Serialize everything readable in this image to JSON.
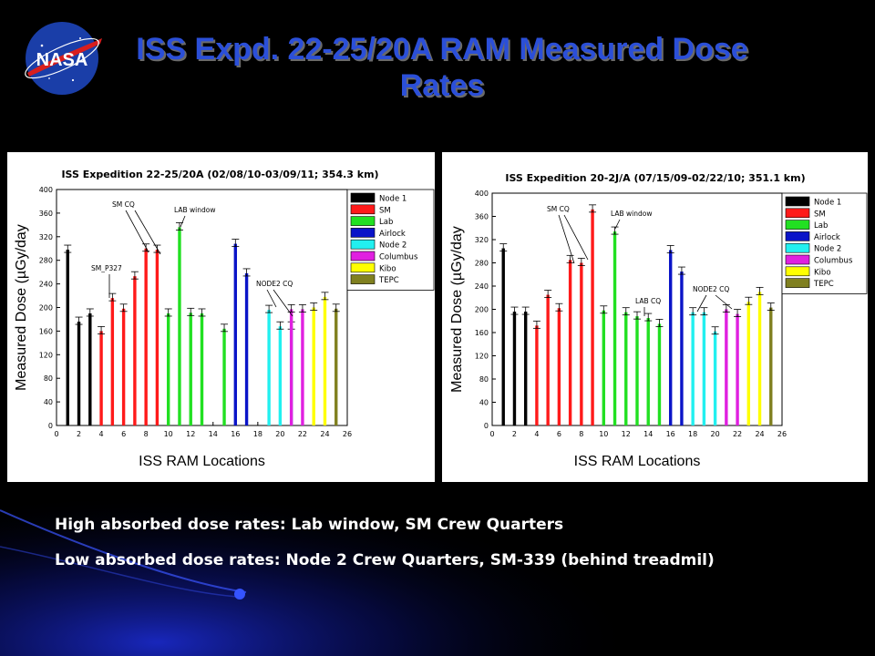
{
  "slide": {
    "title": "ISS Expd. 22-25/20A RAM Measured Dose Rates",
    "logo_text": "NASA",
    "notes": [
      "High absorbed dose rates: Lab window, SM Crew Quarters",
      "Low absorbed dose rates: Node 2 Crew Quarters,  SM-339 (behind treadmil)"
    ]
  },
  "colors": {
    "background": "#000000",
    "title": "#2b4fd8",
    "Node 1": "#000000",
    "SM": "#ff1a1a",
    "Lab": "#22e022",
    "Airlock": "#0a14c8",
    "Node 2": "#22f0f0",
    "Columbus": "#e020e0",
    "Kibo": "#ffff00",
    "TEPC": "#808020"
  },
  "chart_data": [
    {
      "type": "bar",
      "title": "ISS Expedition 22-25/20A (02/08/10-03/09/11; 354.3 km)",
      "xlabel": "ISS RAM Locations",
      "ylabel": "Measured Dose (µGy/day",
      "xlim": [
        0,
        26
      ],
      "ylim": [
        0,
        400
      ],
      "xticks": [
        0,
        2,
        4,
        6,
        8,
        10,
        12,
        14,
        16,
        18,
        20,
        22,
        24,
        26
      ],
      "yticks": [
        0,
        40,
        80,
        120,
        160,
        200,
        240,
        280,
        320,
        360,
        400
      ],
      "legend_position": "top-right",
      "legend": [
        "Node 1",
        "SM",
        "Lab",
        "Airlock",
        "Node 2",
        "Columbus",
        "Kibo",
        "TEPC"
      ],
      "annotations": [
        "SM CQ",
        "SM_P327",
        "LAB window",
        "NODE2 CQ"
      ],
      "series": [
        {
          "name": "Node 1",
          "x": [
            1,
            2,
            3
          ],
          "values": [
            298,
            176,
            190
          ]
        },
        {
          "name": "SM",
          "x": [
            4,
            5,
            6,
            7,
            8,
            9
          ],
          "values": [
            160,
            216,
            198,
            253,
            300,
            298
          ]
        },
        {
          "name": "Lab",
          "x": [
            10,
            11,
            12,
            13,
            15
          ],
          "values": [
            190,
            336,
            191,
            190,
            164
          ]
        },
        {
          "name": "Airlock",
          "x": [
            16,
            17
          ],
          "values": [
            308,
            258
          ]
        },
        {
          "name": "Node 2",
          "x": [
            19,
            20,
            21
          ],
          "values": [
            196,
            168,
            168
          ]
        },
        {
          "name": "Columbus",
          "x": [
            21,
            22
          ],
          "values": [
            197,
            197
          ]
        },
        {
          "name": "Kibo",
          "x": [
            23,
            24
          ],
          "values": [
            200,
            218
          ]
        },
        {
          "name": "TEPC",
          "x": [
            25
          ],
          "values": [
            198
          ]
        }
      ]
    },
    {
      "type": "bar",
      "title": "ISS Expedition 20-2J/A (07/15/09-02/22/10; 351.1 km)",
      "xlabel": "ISS RAM Locations",
      "ylabel": "Measured Dose (µGy/day",
      "xlim": [
        0,
        26
      ],
      "ylim": [
        0,
        400
      ],
      "xticks": [
        0,
        2,
        4,
        6,
        8,
        10,
        12,
        14,
        16,
        18,
        20,
        22,
        24,
        26
      ],
      "yticks": [
        0,
        40,
        80,
        120,
        160,
        200,
        240,
        280,
        320,
        360,
        400
      ],
      "legend_position": "top-right",
      "legend": [
        "Node 1",
        "SM",
        "Lab",
        "Airlock",
        "Node 2",
        "Columbus",
        "Kibo",
        "TEPC"
      ],
      "annotations": [
        "SM CQ",
        "LAB window",
        "LAB CQ",
        "NODE2 CQ"
      ],
      "series": [
        {
          "name": "Node 1",
          "x": [
            1,
            2,
            3
          ],
          "values": [
            305,
            196,
            196
          ]
        },
        {
          "name": "SM",
          "x": [
            4,
            5,
            6,
            7,
            8,
            9
          ],
          "values": [
            172,
            225,
            202,
            285,
            280,
            372
          ]
        },
        {
          "name": "Lab",
          "x": [
            10,
            11,
            12,
            13,
            14,
            15
          ],
          "values": [
            198,
            334,
            195,
            188,
            185,
            175
          ]
        },
        {
          "name": "Airlock",
          "x": [
            16,
            17
          ],
          "values": [
            302,
            265
          ]
        },
        {
          "name": "Node 2",
          "x": [
            18,
            19,
            20
          ],
          "values": [
            195,
            195,
            162
          ]
        },
        {
          "name": "Columbus",
          "x": [
            21,
            22
          ],
          "values": [
            200,
            192
          ]
        },
        {
          "name": "Kibo",
          "x": [
            23,
            24
          ],
          "values": [
            213,
            230
          ]
        },
        {
          "name": "TEPC",
          "x": [
            25
          ],
          "values": [
            203
          ]
        }
      ]
    }
  ]
}
